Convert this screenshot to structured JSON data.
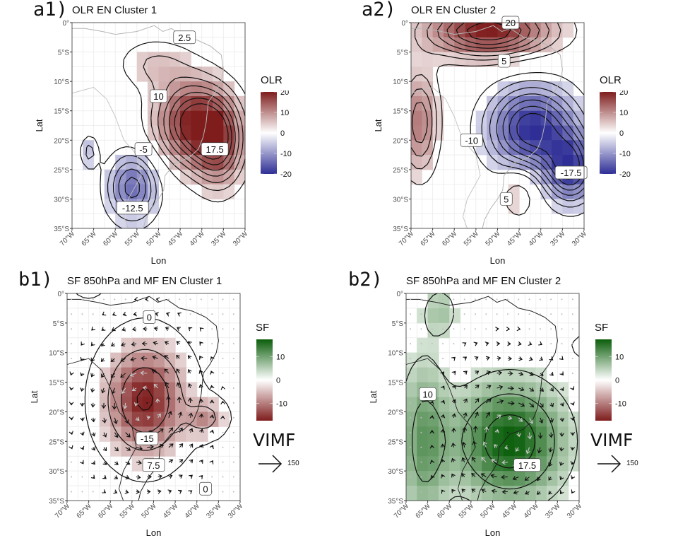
{
  "figure": {
    "panels": [
      {
        "id": "a1",
        "tag": "a1)",
        "title": "OLR EN Cluster 1"
      },
      {
        "id": "a2",
        "tag": "a2)",
        "title": "OLR EN Cluster 2"
      },
      {
        "id": "b1",
        "tag": "b1)",
        "title": "SF 850hPa and MF EN Cluster 1"
      },
      {
        "id": "b2",
        "tag": "b2)",
        "title": "SF 850hPa and MF EN Cluster 2"
      }
    ],
    "legends": {
      "olr": {
        "title": "OLR",
        "ticks": [
          "20",
          "10",
          "0",
          "-10",
          "-20"
        ],
        "colors": {
          "high": "#7f1d1d",
          "mid": "#ffffff",
          "low": "#2e2e96"
        }
      },
      "sf": {
        "title": "SF",
        "ticks": [
          "10",
          "0",
          "-10"
        ],
        "colors": {
          "high": "#0b5e0b",
          "mid": "#ffffff",
          "low": "#7f1d1d"
        }
      },
      "vimf": {
        "title": "VIMF",
        "ref_value": "150"
      }
    }
  },
  "chart_data": [
    {
      "type": "heatmap",
      "panel": "a1",
      "title": "OLR EN Cluster 1",
      "xlabel": "Lon",
      "ylabel": "Lat",
      "xticks": [
        "70°W",
        "65°W",
        "60°W",
        "55°W",
        "50°W",
        "45°W",
        "40°W",
        "35°W",
        "30°W"
      ],
      "yticks": [
        "0°",
        "5°S",
        "10°S",
        "15°S",
        "20°S",
        "25°S",
        "30°S",
        "35°S"
      ],
      "xlim": [
        -70,
        -30
      ],
      "ylim": [
        -35,
        0
      ],
      "fill_variable": "OLR",
      "fill_range": [
        -20,
        20
      ],
      "anomalies": [
        {
          "lon": -42,
          "lat": -17,
          "value": 19,
          "spread_lon": 6,
          "spread_lat": 5
        },
        {
          "lon": -36,
          "lat": -21,
          "value": 13,
          "spread_lon": 4,
          "spread_lat": 5
        },
        {
          "lon": -51,
          "lat": -7,
          "value": 5,
          "spread_lon": 6,
          "spread_lat": 3
        },
        {
          "lon": -56,
          "lat": -28,
          "value": -14,
          "spread_lon": 4,
          "spread_lat": 4
        },
        {
          "lon": -66,
          "lat": -22,
          "value": -6,
          "spread_lon": 1.5,
          "spread_lat": 2
        }
      ],
      "contour_labels": [
        {
          "lon": -44,
          "lat": -2.5,
          "text": "2.5"
        },
        {
          "lon": -50,
          "lat": -12.5,
          "text": "10"
        },
        {
          "lon": -37,
          "lat": -21.5,
          "text": "17.5"
        },
        {
          "lon": -53.5,
          "lat": -21.5,
          "text": "-5"
        },
        {
          "lon": -56,
          "lat": -31.5,
          "text": "-12.5"
        }
      ]
    },
    {
      "type": "heatmap",
      "panel": "a2",
      "title": "OLR EN Cluster 2",
      "xlabel": "Lon",
      "ylabel": "Lat",
      "xticks": [
        "70°W",
        "65°W",
        "60°W",
        "55°W",
        "50°W",
        "45°W",
        "40°W",
        "35°W",
        "30°W"
      ],
      "yticks": [
        "0°",
        "5°S",
        "10°S",
        "15°S",
        "20°S",
        "25°S",
        "30°S",
        "35°S"
      ],
      "xlim": [
        -70,
        -30
      ],
      "ylim": [
        -35,
        0
      ],
      "fill_variable": "OLR",
      "fill_range": [
        -20,
        20
      ],
      "anomalies": [
        {
          "lon": -52,
          "lat": -1.5,
          "value": 20,
          "spread_lon": 10,
          "spread_lat": 3
        },
        {
          "lon": -68,
          "lat": -17,
          "value": 12,
          "spread_lon": 3,
          "spread_lat": 6
        },
        {
          "lon": -42,
          "lat": -18,
          "value": -20,
          "spread_lon": 7,
          "spread_lat": 5
        },
        {
          "lon": -33,
          "lat": -25,
          "value": -17,
          "spread_lon": 4,
          "spread_lat": 4
        },
        {
          "lon": -45,
          "lat": -29,
          "value": 6,
          "spread_lon": 3,
          "spread_lat": 3
        }
      ],
      "contour_labels": [
        {
          "lon": -47,
          "lat": 0,
          "text": "20"
        },
        {
          "lon": -48.5,
          "lat": -6.5,
          "text": "5"
        },
        {
          "lon": -56,
          "lat": -20,
          "text": "-10"
        },
        {
          "lon": -33,
          "lat": -25.5,
          "text": "-17.5"
        },
        {
          "lon": -48,
          "lat": -30,
          "text": "5"
        }
      ]
    },
    {
      "type": "heatmap",
      "panel": "b1",
      "title": "SF 850hPa and MF EN Cluster 1",
      "xlabel": "Lon",
      "ylabel": "Lat",
      "xticks": [
        "70°W",
        "65°W",
        "60°W",
        "55°W",
        "50°W",
        "45°W",
        "40°W",
        "35°W",
        "30°W"
      ],
      "yticks": [
        "0°",
        "5°S",
        "10°S",
        "15°S",
        "20°S",
        "25°S",
        "30°S",
        "35°S"
      ],
      "xlim": [
        -70,
        -30
      ],
      "ylim": [
        -35,
        0
      ],
      "fill_variable": "SF",
      "fill_range": [
        -17,
        17
      ],
      "anomalies": [
        {
          "lon": -52,
          "lat": -18,
          "value": -17,
          "spread_lon": 6,
          "spread_lat": 6
        },
        {
          "lon": -38,
          "lat": -21,
          "value": -8,
          "spread_lon": 3,
          "spread_lat": 2
        },
        {
          "lon": -65,
          "lat": 0,
          "value": 6,
          "spread_lon": 3,
          "spread_lat": 1
        }
      ],
      "flow": {
        "type": "cyclonic",
        "center_lon": -52,
        "center_lat": -19
      },
      "contour_labels": [
        {
          "lon": -51,
          "lat": -4,
          "text": "0"
        },
        {
          "lon": -51.5,
          "lat": -24.5,
          "text": "-15"
        },
        {
          "lon": -50,
          "lat": -29,
          "text": "7.5"
        },
        {
          "lon": -38,
          "lat": -33,
          "text": "0"
        }
      ]
    },
    {
      "type": "heatmap",
      "panel": "b2",
      "title": "SF 850hPa and MF EN Cluster 2",
      "xlabel": "Lon",
      "ylabel": "Lat",
      "xticks": [
        "70°W",
        "65°W",
        "60°W",
        "55°W",
        "50°W",
        "45°W",
        "40°W",
        "35°W",
        "30°W"
      ],
      "yticks": [
        "0°",
        "5°S",
        "10°S",
        "15°S",
        "20°S",
        "25°S",
        "30°S",
        "35°S"
      ],
      "xlim": [
        -70,
        -30
      ],
      "ylim": [
        -35,
        0
      ],
      "fill_variable": "SF",
      "fill_range": [
        -17,
        17
      ],
      "anomalies": [
        {
          "lon": -46,
          "lat": -25,
          "value": 17,
          "spread_lon": 9,
          "spread_lat": 7
        },
        {
          "lon": -66,
          "lat": -25,
          "value": 10,
          "spread_lon": 4,
          "spread_lat": 10
        },
        {
          "lon": -62,
          "lat": -3,
          "value": 6,
          "spread_lon": 3,
          "spread_lat": 3
        },
        {
          "lon": -30,
          "lat": -9,
          "value": -5,
          "spread_lon": 1,
          "spread_lat": 1
        }
      ],
      "flow": {
        "type": "anticyclonic",
        "center_lon": -47,
        "center_lat": -24
      },
      "contour_labels": [
        {
          "lon": -65,
          "lat": -17,
          "text": "10"
        },
        {
          "lon": -42,
          "lat": -29,
          "text": "17.5"
        }
      ]
    }
  ]
}
